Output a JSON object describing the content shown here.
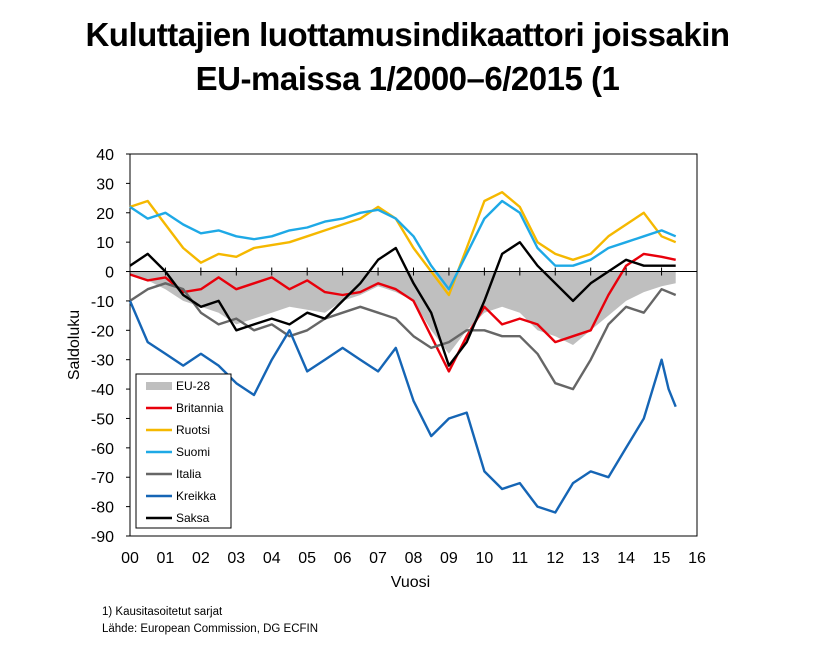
{
  "title_line1": "Kuluttajien luottamusindikaattori joissakin",
  "title_line2": "EU-maissa 1/2000–6/2015 (1",
  "footnote": "1) Kausitasoitetut sarjat",
  "source": "Lähde: European Commission, DG ECFIN",
  "chart_data": {
    "type": "line",
    "xlabel": "Vuosi",
    "ylabel": "Saldoluku",
    "xlim": [
      0,
      16
    ],
    "ylim": [
      -90,
      40
    ],
    "x_ticks": [
      "00",
      "01",
      "02",
      "03",
      "04",
      "05",
      "06",
      "07",
      "08",
      "09",
      "10",
      "11",
      "12",
      "13",
      "14",
      "15",
      "16"
    ],
    "y_ticks": [
      "40",
      "30",
      "20",
      "10",
      "0",
      "-10",
      "-20",
      "-30",
      "-40",
      "-50",
      "-60",
      "-70",
      "-80",
      "-90"
    ],
    "legend_position": "lower-left",
    "series": [
      {
        "name": "EU-28",
        "kind": "area",
        "color": "#bfbfbf",
        "x": [
          0,
          0.5,
          1,
          1.5,
          2,
          2.5,
          3,
          3.5,
          4,
          4.5,
          5,
          5.5,
          6,
          6.5,
          7,
          7.5,
          8,
          8.5,
          9,
          9.5,
          10,
          10.5,
          11,
          11.5,
          12,
          12.5,
          13,
          13.5,
          14,
          14.5,
          15,
          15.4
        ],
        "y": [
          -1,
          -3,
          -6,
          -10,
          -12,
          -14,
          -18,
          -16,
          -14,
          -12,
          -13,
          -14,
          -10,
          -8,
          -5,
          -7,
          -10,
          -20,
          -28,
          -20,
          -14,
          -12,
          -14,
          -20,
          -22,
          -25,
          -20,
          -15,
          -10,
          -7,
          -5,
          -4
        ]
      },
      {
        "name": "Britannia",
        "color": "#e8000b",
        "x": [
          0,
          0.5,
          1,
          1.5,
          2,
          2.5,
          3,
          3.5,
          4,
          4.5,
          5,
          5.5,
          6,
          6.5,
          7,
          7.5,
          8,
          8.5,
          9,
          9.5,
          10,
          10.5,
          11,
          11.5,
          12,
          12.5,
          13,
          13.5,
          14,
          14.5,
          15,
          15.4
        ],
        "y": [
          -1,
          -3,
          -2,
          -7,
          -6,
          -2,
          -6,
          -4,
          -2,
          -6,
          -3,
          -7,
          -8,
          -7,
          -4,
          -6,
          -10,
          -22,
          -34,
          -22,
          -12,
          -18,
          -16,
          -18,
          -24,
          -22,
          -20,
          -8,
          2,
          6,
          5,
          4
        ]
      },
      {
        "name": "Ruotsi",
        "color": "#f5b800",
        "x": [
          0,
          0.5,
          1,
          1.5,
          2,
          2.5,
          3,
          3.5,
          4,
          4.5,
          5,
          5.5,
          6,
          6.5,
          7,
          7.5,
          8,
          8.5,
          9,
          9.5,
          10,
          10.5,
          11,
          11.5,
          12,
          12.5,
          13,
          13.5,
          14,
          14.5,
          15,
          15.4
        ],
        "y": [
          22,
          24,
          16,
          8,
          3,
          6,
          5,
          8,
          9,
          10,
          12,
          14,
          16,
          18,
          22,
          18,
          8,
          0,
          -8,
          8,
          24,
          27,
          22,
          10,
          6,
          4,
          6,
          12,
          16,
          20,
          12,
          10
        ]
      },
      {
        "name": "Suomi",
        "color": "#1ea9e6",
        "x": [
          0,
          0.5,
          1,
          1.5,
          2,
          2.5,
          3,
          3.5,
          4,
          4.5,
          5,
          5.5,
          6,
          6.5,
          7,
          7.5,
          8,
          8.5,
          9,
          9.5,
          10,
          10.5,
          11,
          11.5,
          12,
          12.5,
          13,
          13.5,
          14,
          14.5,
          15,
          15.4
        ],
        "y": [
          22,
          18,
          20,
          16,
          13,
          14,
          12,
          11,
          12,
          14,
          15,
          17,
          18,
          20,
          21,
          18,
          12,
          2,
          -6,
          6,
          18,
          24,
          20,
          8,
          2,
          2,
          4,
          8,
          10,
          12,
          14,
          12
        ]
      },
      {
        "name": "Italia",
        "color": "#666666",
        "x": [
          0,
          0.5,
          1,
          1.5,
          2,
          2.5,
          3,
          3.5,
          4,
          4.5,
          5,
          5.5,
          6,
          6.5,
          7,
          7.5,
          8,
          8.5,
          9,
          9.5,
          10,
          10.5,
          11,
          11.5,
          12,
          12.5,
          13,
          13.5,
          14,
          14.5,
          15,
          15.4
        ],
        "y": [
          -10,
          -6,
          -4,
          -6,
          -14,
          -18,
          -16,
          -20,
          -18,
          -22,
          -20,
          -16,
          -14,
          -12,
          -14,
          -16,
          -22,
          -26,
          -24,
          -20,
          -20,
          -22,
          -22,
          -28,
          -38,
          -40,
          -30,
          -18,
          -12,
          -14,
          -6,
          -8
        ]
      },
      {
        "name": "Kreikka",
        "color": "#1565b5",
        "x": [
          0,
          0.5,
          1,
          1.5,
          2,
          2.5,
          3,
          3.5,
          4,
          4.5,
          5,
          5.5,
          6,
          6.5,
          7,
          7.5,
          8,
          8.5,
          9,
          9.5,
          10,
          10.5,
          11,
          11.5,
          12,
          12.5,
          13,
          13.5,
          14,
          14.5,
          15,
          15.2,
          15.4
        ],
        "y": [
          -10,
          -24,
          -28,
          -32,
          -28,
          -32,
          -38,
          -42,
          -30,
          -20,
          -34,
          -30,
          -26,
          -30,
          -34,
          -26,
          -44,
          -56,
          -50,
          -48,
          -68,
          -74,
          -72,
          -80,
          -82,
          -72,
          -68,
          -70,
          -60,
          -50,
          -30,
          -40,
          -46
        ]
      },
      {
        "name": "Saksa",
        "color": "#000000",
        "x": [
          0,
          0.5,
          1,
          1.5,
          2,
          2.5,
          3,
          3.5,
          4,
          4.5,
          5,
          5.5,
          6,
          6.5,
          7,
          7.5,
          8,
          8.5,
          9,
          9.5,
          10,
          10.5,
          11,
          11.5,
          12,
          12.5,
          13,
          13.5,
          14,
          14.5,
          15,
          15.4
        ],
        "y": [
          2,
          6,
          0,
          -8,
          -12,
          -10,
          -20,
          -18,
          -16,
          -18,
          -14,
          -16,
          -10,
          -4,
          4,
          8,
          -4,
          -14,
          -32,
          -24,
          -10,
          6,
          10,
          2,
          -4,
          -10,
          -4,
          0,
          4,
          2,
          2,
          2
        ]
      }
    ]
  }
}
